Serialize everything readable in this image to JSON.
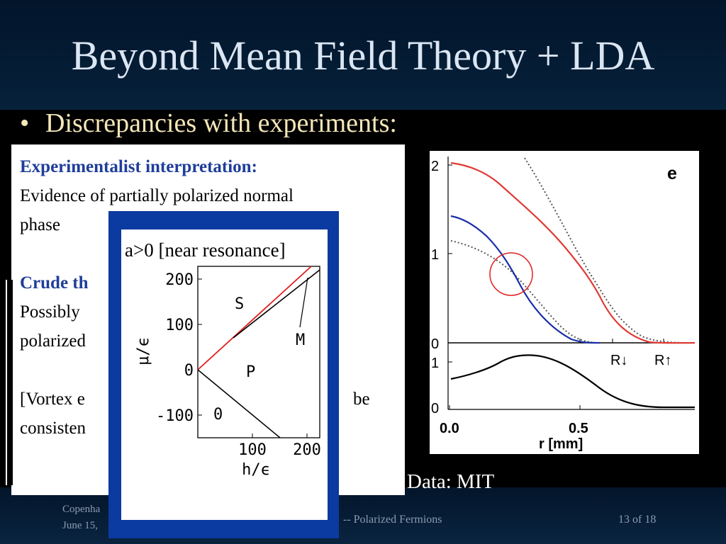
{
  "slide": {
    "title": "Beyond Mean Field Theory + LDA",
    "bullet": "Discrepancies with experiments:",
    "page_number": "13 of 18"
  },
  "footer": {
    "left_line1": "Copenha",
    "left_line2": "June 15,",
    "middle": "-- Polarized Fermions"
  },
  "experiment_box": {
    "heading1": "Experimentalist interpretation:",
    "line1": "Evidence of partially polarized normal",
    "line2": "phase",
    "heading2": "Crude th",
    "line3": "Possibly",
    "line4": "polarized",
    "line5_left": "[Vortex e",
    "line5_right": "be",
    "line6": "consisten"
  },
  "data_credit": "Data: MIT",
  "phase_diagram": {
    "caption": "a>0 [near resonance]",
    "xlabel": "h/ϵ",
    "ylabel": "μ/ϵ",
    "xticks": [
      "100",
      "200"
    ],
    "yticks": [
      "200",
      "100",
      "0",
      "-100"
    ],
    "region_labels": [
      "S",
      "M",
      "P",
      "0"
    ],
    "colors": {
      "red_line": "#e02020",
      "black_line": "#000000"
    }
  },
  "density_plot": {
    "panel_label": "e",
    "xlabel": "r [mm]",
    "xticks": [
      "0.0",
      "0.5"
    ],
    "yticks_top": [
      "2",
      "1",
      "0"
    ],
    "yticks_bottom": [
      "1",
      "0"
    ],
    "radius_labels": [
      "R↓",
      "R↑"
    ],
    "colors": {
      "majority": "#e03a35",
      "minority": "#1a2ea8",
      "difference": "#000000",
      "circle": "#e02020"
    }
  }
}
